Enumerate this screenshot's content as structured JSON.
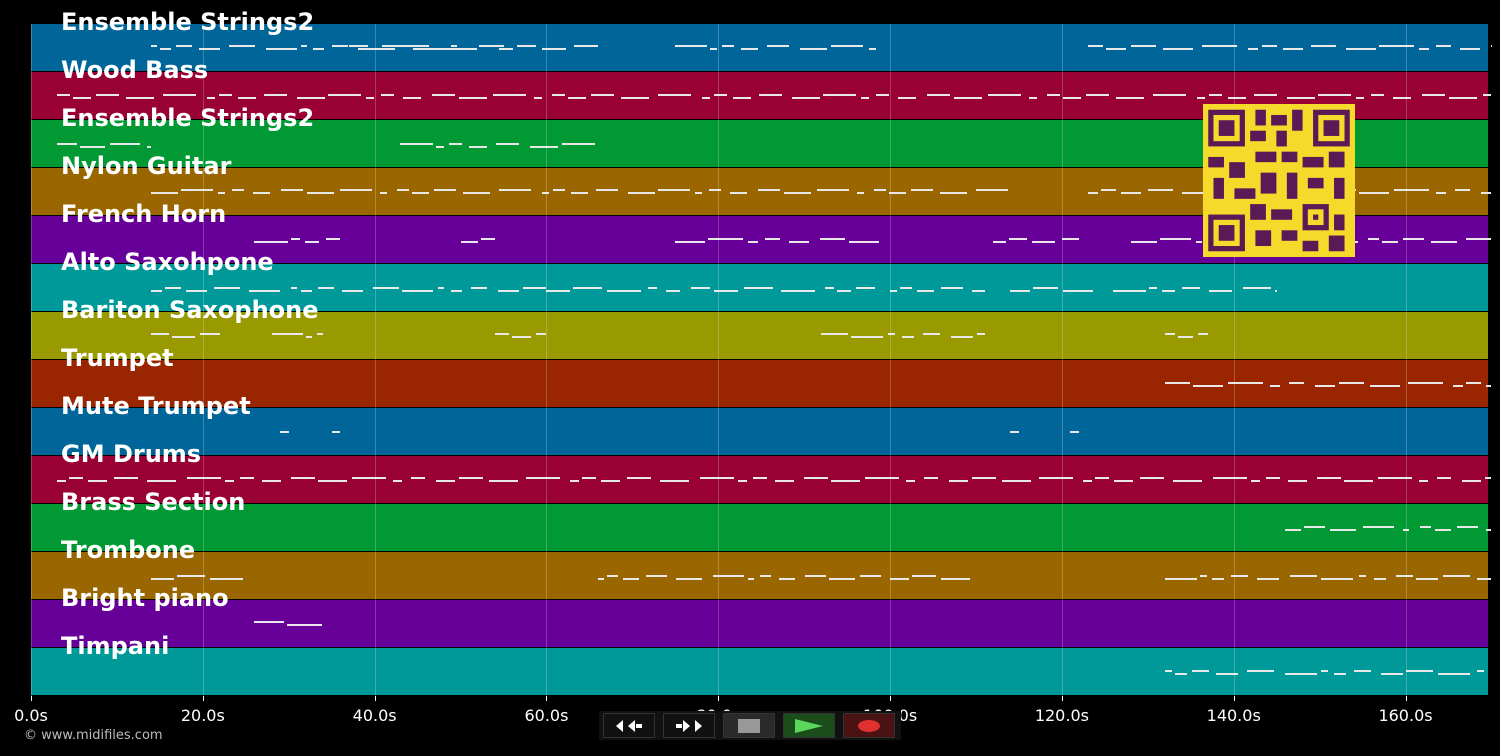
{
  "timeline": {
    "ticks": [
      "0.0s",
      "20.0s",
      "40.0s",
      "60.0s",
      "80.0s",
      "100.0s",
      "120.0s",
      "140.0s",
      "160.0s"
    ],
    "tick_seconds": [
      0,
      20,
      40,
      60,
      80,
      100,
      120,
      140,
      160
    ],
    "max_seconds": 169.6
  },
  "tracks": [
    {
      "name": "Ensemble Strings2",
      "color": "#006699"
    },
    {
      "name": "Wood Bass",
      "color": "#990033"
    },
    {
      "name": "Ensemble Strings2",
      "color": "#009933"
    },
    {
      "name": "Nylon Guitar",
      "color": "#996600"
    },
    {
      "name": "French Horn",
      "color": "#660099"
    },
    {
      "name": "Alto Saxohpone",
      "color": "#009999"
    },
    {
      "name": "Bariton Saxophone",
      "color": "#999900"
    },
    {
      "name": "Trumpet",
      "color": "#992600"
    },
    {
      "name": "Mute Trumpet",
      "color": "#006699"
    },
    {
      "name": "GM Drums",
      "color": "#990033"
    },
    {
      "name": "Brass Section",
      "color": "#009933"
    },
    {
      "name": "Trombone",
      "color": "#996600"
    },
    {
      "name": "Bright piano",
      "color": "#660099"
    },
    {
      "name": "Timpani",
      "color": "#009999"
    }
  ],
  "notes": [
    [
      [
        14,
        56
      ],
      [
        37,
        66
      ],
      [
        75,
        99
      ],
      [
        123,
        170
      ]
    ],
    [
      [
        3,
        170
      ]
    ],
    [
      [
        3,
        14
      ],
      [
        43,
        66
      ]
    ],
    [
      [
        14,
        115
      ],
      [
        123,
        170
      ]
    ],
    [
      [
        26,
        36
      ],
      [
        50,
        54
      ],
      [
        75,
        99
      ],
      [
        112,
        122
      ],
      [
        128,
        170
      ]
    ],
    [
      [
        14,
        60
      ],
      [
        60,
        99
      ],
      [
        100,
        111
      ],
      [
        114,
        124
      ],
      [
        126,
        145
      ]
    ],
    [
      [
        14,
        22
      ],
      [
        28,
        34
      ],
      [
        54,
        60
      ],
      [
        92,
        111
      ],
      [
        132,
        137
      ]
    ],
    [
      [
        132,
        170
      ]
    ],
    [
      [
        29,
        30
      ],
      [
        35,
        36
      ],
      [
        114,
        115
      ],
      [
        121,
        122
      ]
    ],
    [
      [
        3,
        170
      ]
    ],
    [
      [
        146,
        170
      ]
    ],
    [
      [
        14,
        25
      ],
      [
        66,
        99
      ],
      [
        100,
        110
      ],
      [
        132,
        170
      ]
    ],
    [
      [
        26,
        34
      ]
    ],
    [
      [
        132,
        170
      ]
    ]
  ],
  "transport": {
    "buttons": [
      "rewind",
      "fast-forward",
      "stop",
      "play",
      "record"
    ]
  },
  "copyright": "© www.midifiles.com"
}
